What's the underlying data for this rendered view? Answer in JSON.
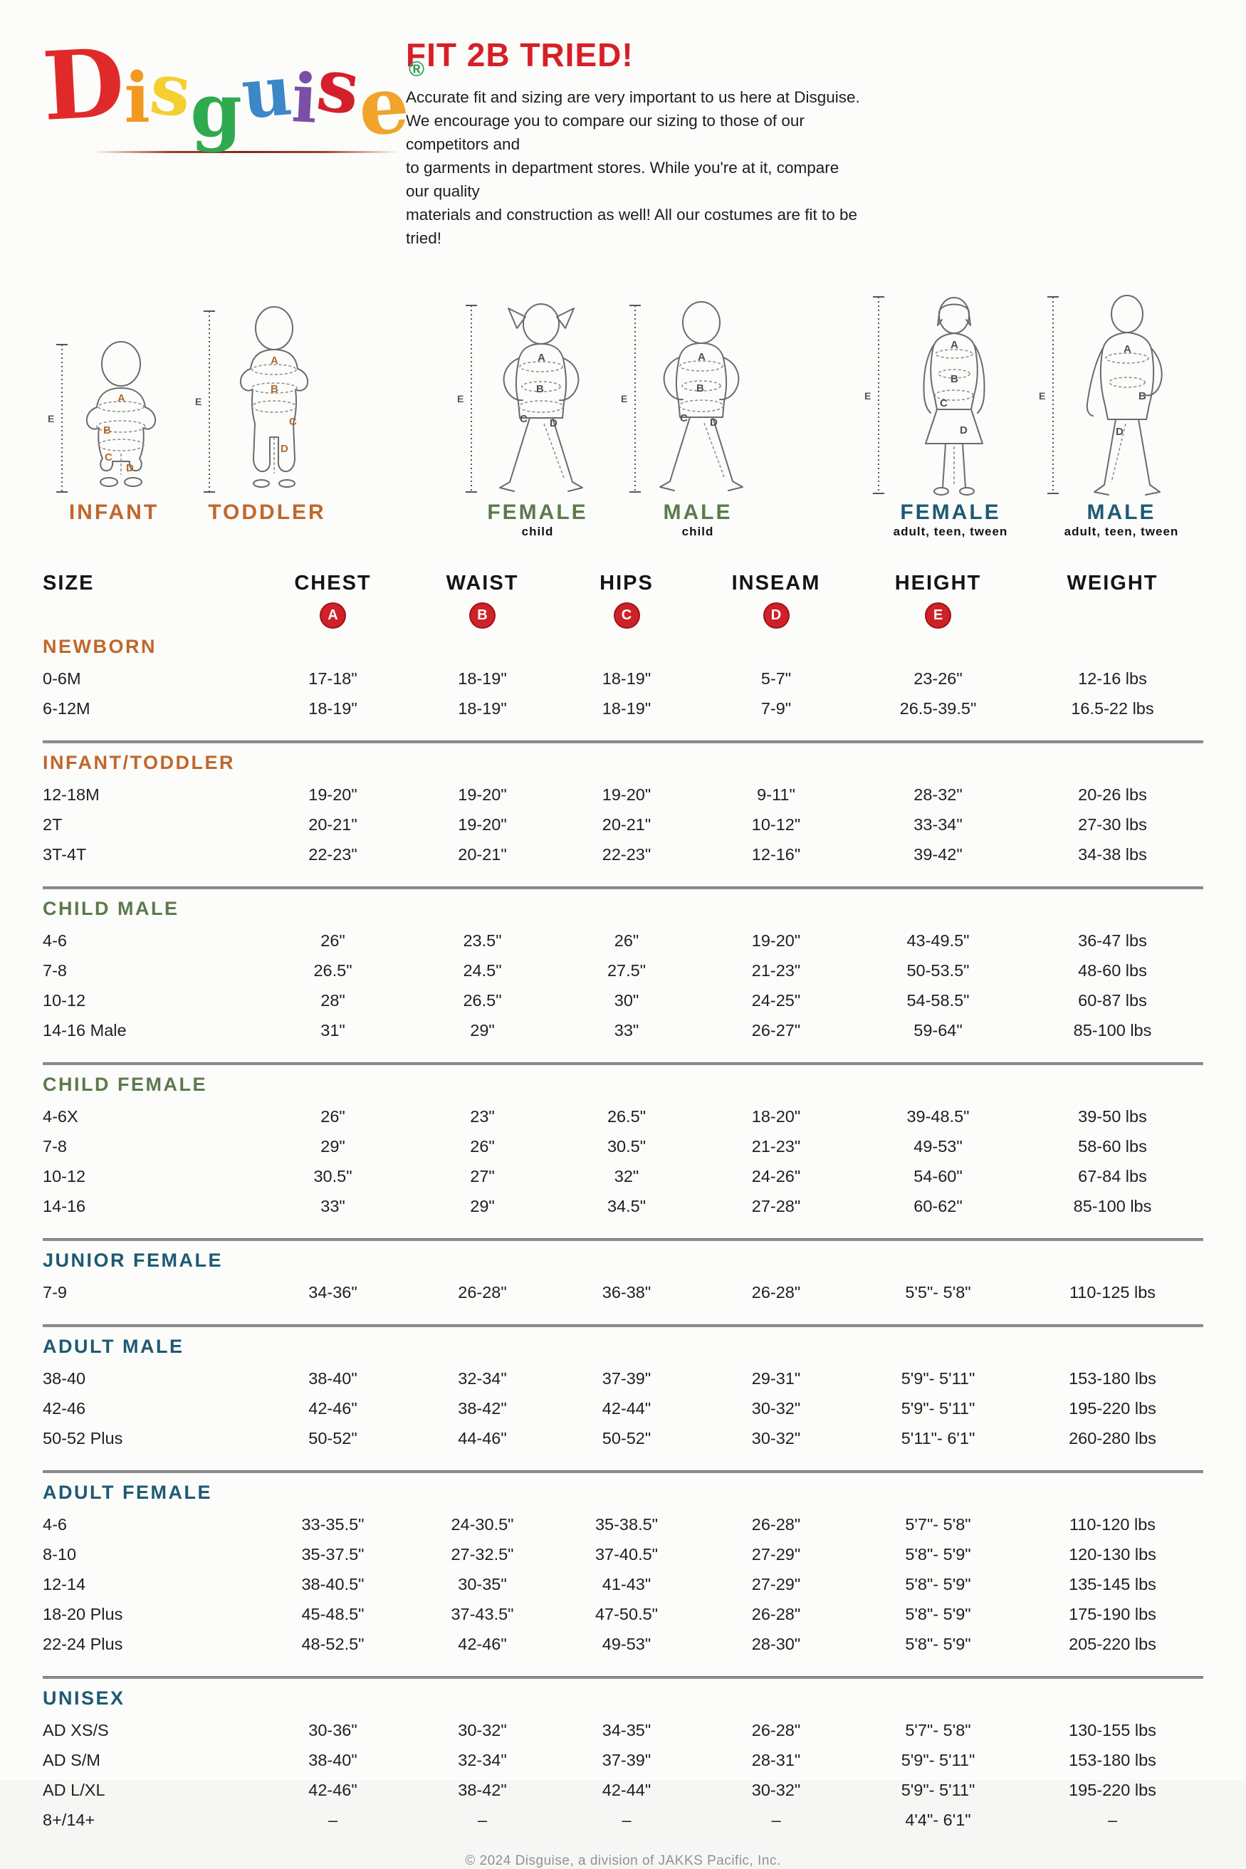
{
  "logo": {
    "letters": [
      {
        "ch": "D",
        "color": "#e02a2a"
      },
      {
        "ch": "i",
        "color": "#f2991f"
      },
      {
        "ch": "s",
        "color": "#f5cf30"
      },
      {
        "ch": "g",
        "color": "#2faa4f"
      },
      {
        "ch": "u",
        "color": "#3b87c8"
      },
      {
        "ch": "i",
        "color": "#7a4fa5"
      },
      {
        "ch": "s",
        "color": "#d41f2c"
      },
      {
        "ch": "e",
        "color": "#f0a42b"
      }
    ],
    "registered_mark": "®",
    "registered_color": "#2f9e57"
  },
  "header": {
    "title": "FIT 2B TRIED!",
    "title_color": "#d61f26",
    "lines": [
      "Accurate fit and sizing are very important to us here at Disguise.",
      "We encourage you to compare our sizing to those of our competitors and",
      "to garments in department stores. While you're at it, compare our quality",
      "materials and construction as well! All our costumes are fit to be tried!"
    ]
  },
  "measure_letters": [
    "A",
    "B",
    "C",
    "D",
    "E"
  ],
  "figures": [
    {
      "label": "INFANT",
      "sublabel": ""
    },
    {
      "label": "TODDLER",
      "sublabel": ""
    },
    {
      "label": "FEMALE",
      "sublabel": "child"
    },
    {
      "label": "MALE",
      "sublabel": "child"
    },
    {
      "label": "FEMALE",
      "sublabel": "adult, teen, tween"
    },
    {
      "label": "MALE",
      "sublabel": "adult, teen, tween"
    }
  ],
  "table": {
    "columns": [
      "SIZE",
      "CHEST",
      "WAIST",
      "HIPS",
      "INSEAM",
      "HEIGHT",
      "WEIGHT"
    ],
    "badges": [
      "A",
      "B",
      "C",
      "D",
      "E"
    ],
    "sections": [
      {
        "name": "NEWBORN",
        "color": "#c0672b",
        "rows": [
          {
            "size": "0-6M",
            "values": [
              "17-18\"",
              "18-19\"",
              "18-19\"",
              "5-7\"",
              "23-26\"",
              "12-16 lbs"
            ]
          },
          {
            "size": "6-12M",
            "values": [
              "18-19\"",
              "18-19\"",
              "18-19\"",
              "7-9\"",
              "26.5-39.5\"",
              "16.5-22 lbs"
            ]
          }
        ]
      },
      {
        "name": "INFANT/TODDLER",
        "color": "#c0672b",
        "rows": [
          {
            "size": "12-18M",
            "values": [
              "19-20\"",
              "19-20\"",
              "19-20\"",
              "9-11\"",
              "28-32\"",
              "20-26 lbs"
            ]
          },
          {
            "size": "2T",
            "values": [
              "20-21\"",
              "19-20\"",
              "20-21\"",
              "10-12\"",
              "33-34\"",
              "27-30 lbs"
            ]
          },
          {
            "size": "3T-4T",
            "values": [
              "22-23\"",
              "20-21\"",
              "22-23\"",
              "12-16\"",
              "39-42\"",
              "34-38 lbs"
            ]
          }
        ]
      },
      {
        "name": "CHILD MALE",
        "color": "#5c7a4e",
        "rows": [
          {
            "size": "4-6",
            "values": [
              "26\"",
              "23.5\"",
              "26\"",
              "19-20\"",
              "43-49.5\"",
              "36-47 lbs"
            ]
          },
          {
            "size": "7-8",
            "values": [
              "26.5\"",
              "24.5\"",
              "27.5\"",
              "21-23\"",
              "50-53.5\"",
              "48-60 lbs"
            ]
          },
          {
            "size": "10-12",
            "values": [
              "28\"",
              "26.5\"",
              "30\"",
              "24-25\"",
              "54-58.5\"",
              "60-87 lbs"
            ]
          },
          {
            "size": "14-16 Male",
            "values": [
              "31\"",
              "29\"",
              "33\"",
              "26-27\"",
              "59-64\"",
              "85-100 lbs"
            ]
          }
        ]
      },
      {
        "name": "CHILD FEMALE",
        "color": "#5c7a4e",
        "rows": [
          {
            "size": "4-6X",
            "values": [
              "26\"",
              "23\"",
              "26.5\"",
              "18-20\"",
              "39-48.5\"",
              "39-50 lbs"
            ]
          },
          {
            "size": "7-8",
            "values": [
              "29\"",
              "26\"",
              "30.5\"",
              "21-23\"",
              "49-53\"",
              "58-60 lbs"
            ]
          },
          {
            "size": "10-12",
            "values": [
              "30.5\"",
              "27\"",
              "32\"",
              "24-26\"",
              "54-60\"",
              "67-84 lbs"
            ]
          },
          {
            "size": "14-16",
            "values": [
              "33\"",
              "29\"",
              "34.5\"",
              "27-28\"",
              "60-62\"",
              "85-100 lbs"
            ]
          }
        ]
      },
      {
        "name": "JUNIOR FEMALE",
        "color": "#1d5a74",
        "rows": [
          {
            "size": "7-9",
            "values": [
              "34-36\"",
              "26-28\"",
              "36-38\"",
              "26-28\"",
              "5'5\"- 5'8\"",
              "110-125 lbs"
            ]
          }
        ]
      },
      {
        "name": "ADULT MALE",
        "color": "#1d5a74",
        "rows": [
          {
            "size": "38-40",
            "values": [
              "38-40\"",
              "32-34\"",
              "37-39\"",
              "29-31\"",
              "5'9\"- 5'11\"",
              "153-180 lbs"
            ]
          },
          {
            "size": "42-46",
            "values": [
              "42-46\"",
              "38-42\"",
              "42-44\"",
              "30-32\"",
              "5'9\"- 5'11\"",
              "195-220 lbs"
            ]
          },
          {
            "size": "50-52 Plus",
            "values": [
              "50-52\"",
              "44-46\"",
              "50-52\"",
              "30-32\"",
              "5'11\"- 6'1\"",
              "260-280 lbs"
            ]
          }
        ]
      },
      {
        "name": "ADULT FEMALE",
        "color": "#1d5a74",
        "rows": [
          {
            "size": "4-6",
            "values": [
              "33-35.5\"",
              "24-30.5\"",
              "35-38.5\"",
              "26-28\"",
              "5'7\"- 5'8\"",
              "110-120 lbs"
            ]
          },
          {
            "size": "8-10",
            "values": [
              "35-37.5\"",
              "27-32.5\"",
              "37-40.5\"",
              "27-29\"",
              "5'8\"- 5'9\"",
              "120-130 lbs"
            ]
          },
          {
            "size": "12-14",
            "values": [
              "38-40.5\"",
              "30-35\"",
              "41-43\"",
              "27-29\"",
              "5'8\"- 5'9\"",
              "135-145 lbs"
            ]
          },
          {
            "size": "18-20 Plus",
            "values": [
              "45-48.5\"",
              "37-43.5\"",
              "47-50.5\"",
              "26-28\"",
              "5'8\"- 5'9\"",
              "175-190 lbs"
            ]
          },
          {
            "size": "22-24 Plus",
            "values": [
              "48-52.5\"",
              "42-46\"",
              "49-53\"",
              "28-30\"",
              "5'8\"- 5'9\"",
              "205-220 lbs"
            ]
          }
        ]
      },
      {
        "name": "UNISEX",
        "color": "#1d5a74",
        "rows": [
          {
            "size": "AD XS/S",
            "values": [
              "30-36\"",
              "30-32\"",
              "34-35\"",
              "26-28\"",
              "5'7\"- 5'8\"",
              "130-155 lbs"
            ]
          },
          {
            "size": "AD S/M",
            "values": [
              "38-40\"",
              "32-34\"",
              "37-39\"",
              "28-31\"",
              "5'9\"- 5'11\"",
              "153-180 lbs"
            ]
          },
          {
            "size": "AD L/XL",
            "values": [
              "42-46\"",
              "38-42\"",
              "42-44\"",
              "30-32\"",
              "5'9\"- 5'11\"",
              "195-220 lbs"
            ]
          },
          {
            "size": "8+/14+",
            "values": [
              "–",
              "–",
              "–",
              "–",
              "4'4\"- 6'1\"",
              "–"
            ]
          }
        ]
      }
    ]
  },
  "footer": {
    "copyright": "© 2024 Disguise, a division of JAKKS Pacific, Inc."
  },
  "colors": {
    "badge_red": "#cf2128",
    "divider_gray": "#8f8f8f",
    "orange_section": "#c0672b",
    "green_section": "#5c7a4e",
    "teal_section": "#1d5a74"
  }
}
